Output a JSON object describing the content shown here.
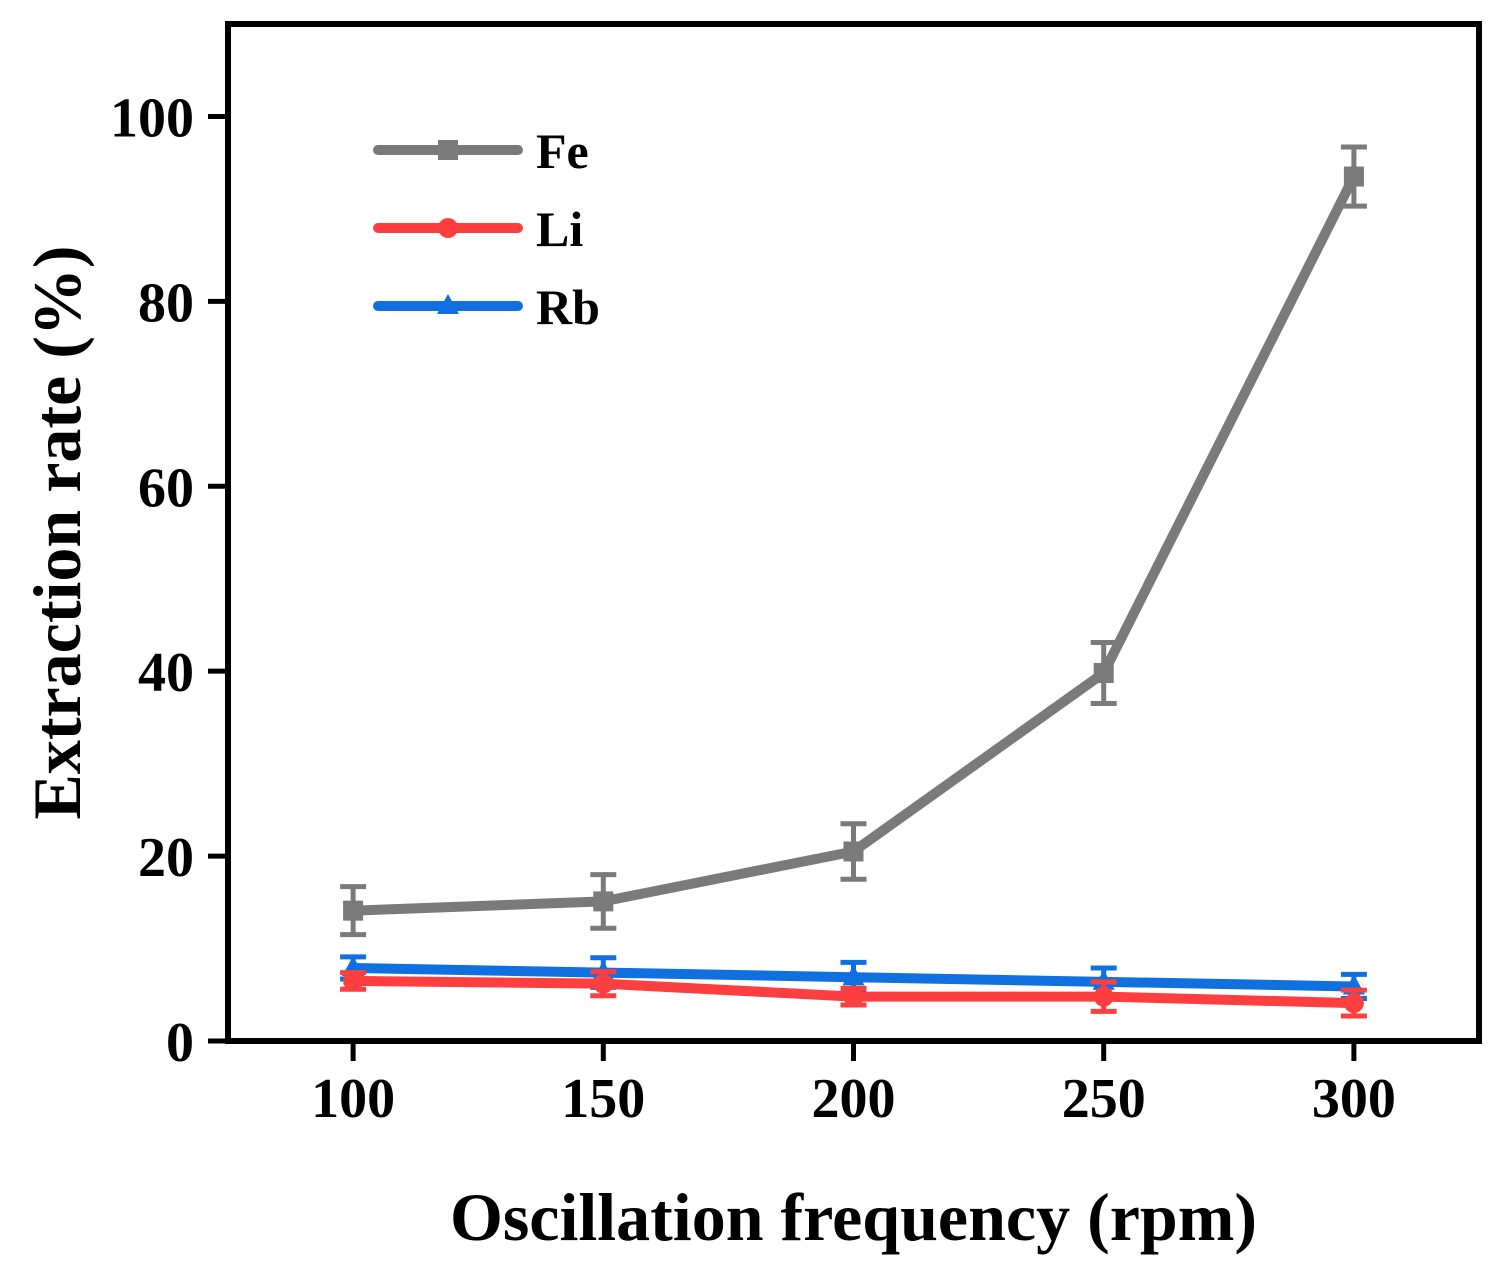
{
  "chart_data": {
    "type": "line",
    "xlabel": "Oscillation frequency (rpm)",
    "ylabel": "Extraction rate (%)",
    "x": [
      100,
      150,
      200,
      250,
      300
    ],
    "xlim": [
      75,
      325
    ],
    "ylim": [
      0,
      110
    ],
    "xticks": [
      100,
      150,
      200,
      250,
      300
    ],
    "yticks": [
      0,
      20,
      40,
      60,
      80,
      100
    ],
    "grid": false,
    "legend_position": "top-left",
    "series": [
      {
        "name": "Fe",
        "color": "#7a7a7a",
        "marker": "square",
        "values": [
          14.1,
          15.1,
          20.5,
          39.8,
          93.5
        ],
        "errors": [
          2.6,
          2.9,
          3.0,
          3.3,
          3.2
        ]
      },
      {
        "name": "Li",
        "color": "#ff3f3f",
        "marker": "circle",
        "values": [
          6.5,
          6.2,
          4.8,
          4.8,
          4.1
        ],
        "errors": [
          0.9,
          1.3,
          0.9,
          1.6,
          1.4
        ]
      },
      {
        "name": "Rb",
        "color": "#1070e0",
        "marker": "triangle",
        "values": [
          7.9,
          7.4,
          6.9,
          6.4,
          5.9
        ],
        "errors": [
          1.2,
          1.6,
          1.6,
          1.5,
          1.3
        ]
      }
    ]
  }
}
